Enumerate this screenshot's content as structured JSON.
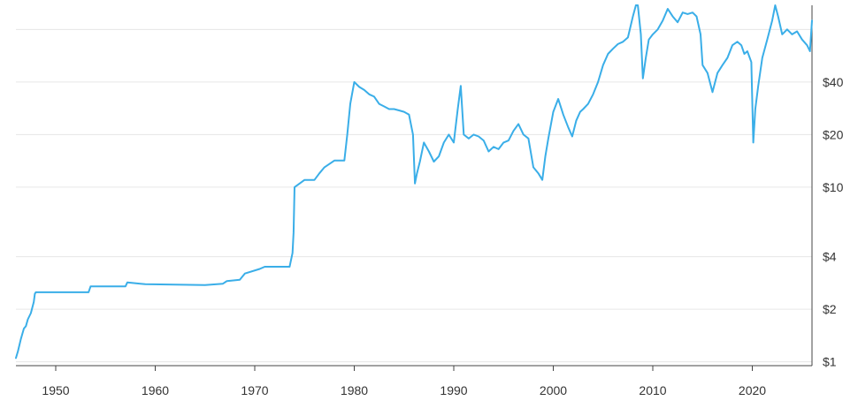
{
  "chart_data": {
    "type": "line",
    "title": "",
    "xlabel": "",
    "ylabel": "",
    "y_scale": "log",
    "xlim": [
      1946,
      2026
    ],
    "ylim": [
      0.95,
      110
    ],
    "grid": true,
    "x_ticks": [
      1950,
      1960,
      1970,
      1980,
      1990,
      2000,
      2010,
      2020
    ],
    "x_tick_labels": [
      "1950",
      "1960",
      "1970",
      "1980",
      "1990",
      "2000",
      "2010",
      "2020"
    ],
    "y_ticks": [
      1,
      2,
      4,
      10,
      20,
      40
    ],
    "y_tick_labels": [
      "$1",
      "$2",
      "$4",
      "$10",
      "$20",
      "$40"
    ],
    "y_gridlines": [
      1,
      2,
      4,
      10,
      20,
      40,
      80
    ],
    "series": [
      {
        "color": "#3aaee8",
        "x": [
          1946.0,
          1946.2,
          1946.5,
          1946.8,
          1947.0,
          1947.2,
          1947.5,
          1947.8,
          1947.9,
          1948.0,
          1953.3,
          1953.5,
          1957.0,
          1957.2,
          1958.5,
          1959.0,
          1965.0,
          1966.8,
          1967.2,
          1968.5,
          1969.0,
          1970.5,
          1971.0,
          1972.5,
          1973.0,
          1973.5,
          1973.8,
          1973.9,
          1974.0,
          1975.0,
          1976.0,
          1976.5,
          1977.0,
          1978.0,
          1979.0,
          1979.3,
          1979.6,
          1980.0,
          1980.5,
          1981.0,
          1981.5,
          1982.0,
          1982.5,
          1983.0,
          1983.5,
          1984.0,
          1984.5,
          1985.0,
          1985.5,
          1985.9,
          1986.1,
          1986.3,
          1986.6,
          1987.0,
          1987.5,
          1988.0,
          1988.5,
          1989.0,
          1989.5,
          1990.0,
          1990.4,
          1990.7,
          1991.0,
          1991.5,
          1992.0,
          1992.5,
          1993.0,
          1993.5,
          1994.0,
          1994.5,
          1995.0,
          1995.5,
          1996.0,
          1996.5,
          1997.0,
          1997.5,
          1998.0,
          1998.5,
          1998.9,
          1999.2,
          1999.5,
          2000.0,
          2000.5,
          2001.0,
          2001.5,
          2001.9,
          2002.3,
          2002.7,
          2003.0,
          2003.5,
          2004.0,
          2004.5,
          2005.0,
          2005.5,
          2006.0,
          2006.5,
          2007.0,
          2007.5,
          2008.0,
          2008.3,
          2008.5,
          2008.8,
          2009.0,
          2009.3,
          2009.6,
          2010.0,
          2010.5,
          2011.0,
          2011.5,
          2012.0,
          2012.5,
          2013.0,
          2013.5,
          2014.0,
          2014.4,
          2014.8,
          2015.0,
          2015.5,
          2016.0,
          2016.5,
          2017.0,
          2017.5,
          2018.0,
          2018.5,
          2018.9,
          2019.2,
          2019.5,
          2019.9,
          2020.1,
          2020.3,
          2020.6,
          2021.0,
          2021.5,
          2022.0,
          2022.3,
          2022.6,
          2023.0,
          2023.5,
          2024.0,
          2024.5,
          2025.0,
          2025.5,
          2025.8,
          2026.0
        ],
        "y": [
          1.05,
          1.15,
          1.35,
          1.55,
          1.6,
          1.75,
          1.9,
          2.2,
          2.45,
          2.5,
          2.5,
          2.7,
          2.7,
          2.85,
          2.8,
          2.78,
          2.75,
          2.8,
          2.9,
          2.95,
          3.2,
          3.4,
          3.5,
          3.5,
          3.5,
          3.5,
          4.2,
          5.5,
          10.0,
          11.0,
          11.0,
          12.0,
          13.0,
          14.2,
          14.2,
          20.0,
          30.0,
          40.0,
          37.5,
          36.0,
          34.0,
          33.0,
          30.0,
          29.0,
          28.0,
          28.0,
          27.5,
          27.0,
          26.0,
          20.0,
          10.5,
          12.0,
          14.0,
          18.0,
          16.0,
          14.0,
          15.0,
          18.0,
          20.0,
          18.0,
          28.0,
          38.0,
          20.0,
          19.0,
          20.0,
          19.5,
          18.5,
          16.0,
          17.0,
          16.5,
          18.0,
          18.5,
          21.0,
          23.0,
          20.0,
          19.0,
          13.0,
          12.0,
          11.0,
          15.0,
          19.0,
          27.0,
          32.0,
          26.0,
          22.0,
          19.5,
          24.0,
          27.0,
          28.0,
          30.0,
          34.0,
          40.0,
          50.0,
          58.0,
          62.0,
          66.0,
          68.0,
          72.0,
          95.0,
          130.0,
          115.0,
          75.0,
          42.0,
          55.0,
          70.0,
          75.0,
          80.0,
          90.0,
          105.0,
          95.0,
          88.0,
          100.0,
          98.0,
          100.0,
          95.0,
          75.0,
          50.0,
          45.0,
          35.0,
          45.0,
          50.0,
          55.0,
          65.0,
          68.0,
          65.0,
          58.0,
          60.0,
          52.0,
          18.0,
          28.0,
          38.0,
          55.0,
          70.0,
          90.0,
          110.0,
          95.0,
          75.0,
          80.0,
          75.0,
          78.0,
          70.0,
          65.0,
          60.0,
          90.0
        ]
      }
    ]
  }
}
